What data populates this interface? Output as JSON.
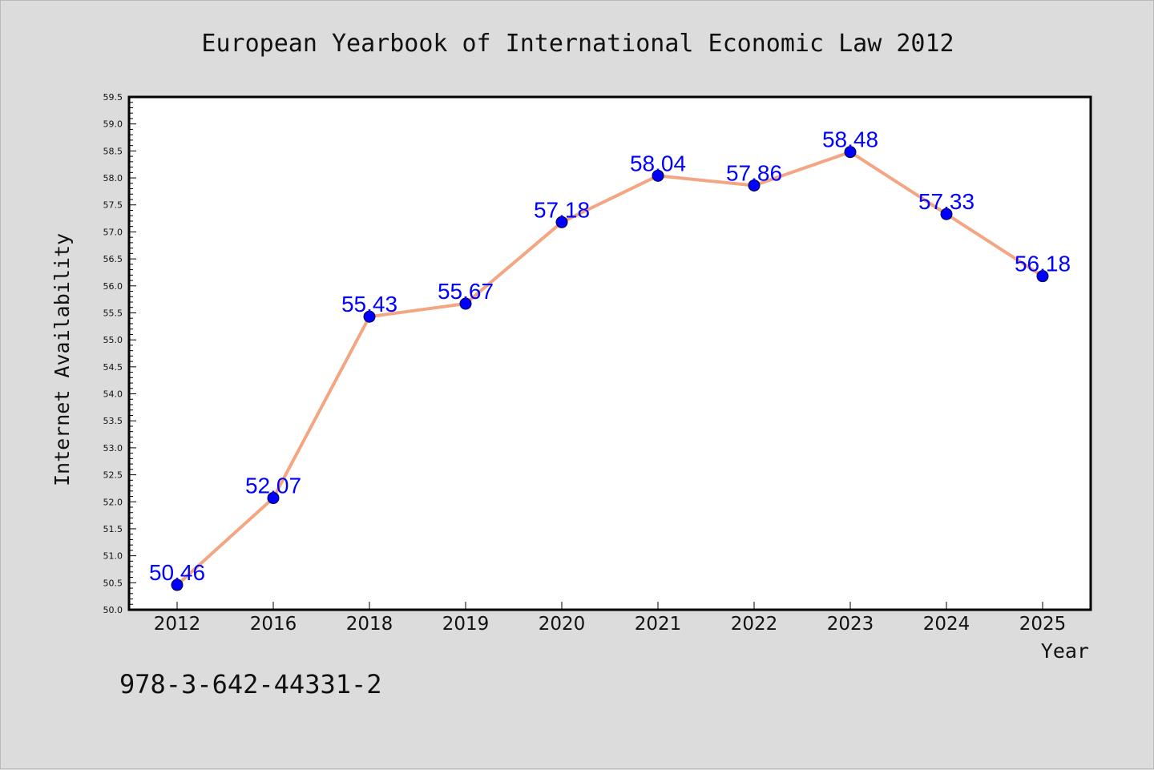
{
  "chart_data": {
    "type": "line",
    "title": "European Yearbook of International Economic Law 2012",
    "xlabel": "Year",
    "ylabel": "Internet Availability",
    "categories": [
      "2012",
      "2016",
      "2018",
      "2019",
      "2020",
      "2021",
      "2022",
      "2023",
      "2024",
      "2025"
    ],
    "series": [
      {
        "values": [
          50.46,
          52.07,
          55.43,
          55.67,
          57.18,
          58.04,
          57.86,
          58.48,
          57.33,
          56.18
        ],
        "labels": [
          "50.46",
          "52.07",
          "55.43",
          "55.67",
          "57.18",
          "58.04",
          "57.86",
          "58.48",
          "57.33",
          "56.18"
        ],
        "line_color": "#f4a582",
        "marker_color": "#0000ff"
      }
    ],
    "ylim": [
      50.0,
      59.5
    ],
    "yticks": [
      "50.0",
      "50.5",
      "51.0",
      "51.5",
      "52.0",
      "52.5",
      "53.0",
      "53.5",
      "54.0",
      "54.5",
      "55.0",
      "55.5",
      "56.0",
      "56.5",
      "57.0",
      "57.5",
      "58.0",
      "58.5",
      "59.0",
      "59.5"
    ],
    "grid": false,
    "legend": "none"
  },
  "footer": {
    "text": "978-3-642-44331-2"
  },
  "colors": {
    "background": "#dcdcdc",
    "plot_area": "#ffffff",
    "line": "#f4a582",
    "marker": "#0000ff",
    "data_label": "#0000ff"
  }
}
